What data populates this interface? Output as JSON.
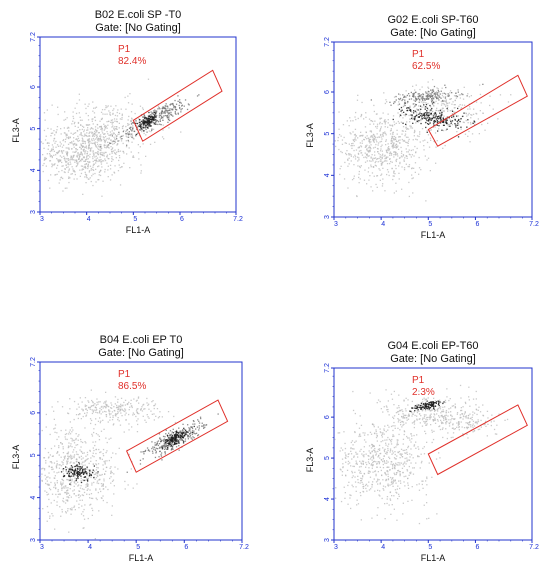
{
  "chart_data": [
    {
      "type": "scatter",
      "title": "B02 E.coli SP -T0",
      "subtitle": "Gate: [No Gating]",
      "xlabel": "FL1-A",
      "ylabel": "FL3-A",
      "xlim": [
        3,
        7.2
      ],
      "ylim": [
        3,
        7.2
      ],
      "xticks": [
        "3",
        "4",
        "5",
        "6",
        "7.2"
      ],
      "yticks": [
        "3",
        "4",
        "5",
        "6",
        "7.2"
      ],
      "gate": {
        "name": "P1",
        "percent": "82.4%"
      },
      "gate_polygon": [
        [
          5.0,
          5.2
        ],
        [
          6.7,
          6.4
        ],
        [
          6.9,
          5.9
        ],
        [
          5.2,
          4.7
        ]
      ],
      "populations": [
        {
          "cx": 3.9,
          "cy": 4.4,
          "sx": 0.45,
          "sy": 0.35,
          "n": 600,
          "tone": "light"
        },
        {
          "cx": 4.4,
          "cy": 5.0,
          "sx": 0.55,
          "sy": 0.35,
          "n": 350,
          "tone": "light"
        },
        {
          "cx": 5.5,
          "cy": 5.3,
          "sx": 0.45,
          "sy": 0.1,
          "n": 260,
          "tone": "mid",
          "tilt": 0.55
        },
        {
          "cx": 5.3,
          "cy": 5.2,
          "sx": 0.12,
          "sy": 0.06,
          "n": 120,
          "tone": "dark",
          "tilt": 0.6
        }
      ]
    },
    {
      "type": "scatter",
      "title": "G02 E.coli SP-T60",
      "subtitle": "Gate: [No Gating]",
      "xlabel": "FL1-A",
      "ylabel": "FL3-A",
      "xlim": [
        3,
        7.2
      ],
      "ylim": [
        3,
        7.2
      ],
      "xticks": [
        "3",
        "4",
        "5",
        "6",
        "7.2"
      ],
      "yticks": [
        "3",
        "4",
        "5",
        "6",
        "7.2"
      ],
      "gate": {
        "name": "P1",
        "percent": "62.5%"
      },
      "gate_polygon": [
        [
          5.0,
          5.1
        ],
        [
          6.9,
          6.4
        ],
        [
          7.1,
          5.9
        ],
        [
          5.2,
          4.7
        ]
      ],
      "populations": [
        {
          "cx": 4.0,
          "cy": 4.7,
          "sx": 0.45,
          "sy": 0.45,
          "n": 600,
          "tone": "light"
        },
        {
          "cx": 5.3,
          "cy": 5.6,
          "sx": 0.5,
          "sy": 0.3,
          "n": 300,
          "tone": "light"
        },
        {
          "cx": 4.9,
          "cy": 5.9,
          "sx": 0.35,
          "sy": 0.08,
          "n": 160,
          "tone": "mid",
          "tilt": 0.1
        },
        {
          "cx": 5.1,
          "cy": 5.4,
          "sx": 0.12,
          "sy": 0.35,
          "n": 200,
          "tone": "dark",
          "tilt": 1.4
        }
      ]
    },
    {
      "type": "scatter",
      "title": "B04 E.coli EP T0",
      "subtitle": "Gate: [No Gating]",
      "xlabel": "FL1-A",
      "ylabel": "FL3-A",
      "xlim": [
        3,
        7.2
      ],
      "ylim": [
        3,
        7.2
      ],
      "xticks": [
        "3",
        "4",
        "5",
        "6",
        "7.2"
      ],
      "yticks": [
        "3",
        "4",
        "5",
        "6",
        "7.2"
      ],
      "gate": {
        "name": "P1",
        "percent": "86.5%"
      },
      "gate_polygon": [
        [
          4.8,
          5.1
        ],
        [
          6.7,
          6.3
        ],
        [
          6.9,
          5.8
        ],
        [
          5.0,
          4.6
        ]
      ],
      "populations": [
        {
          "cx": 3.7,
          "cy": 4.6,
          "sx": 0.5,
          "sy": 0.5,
          "n": 650,
          "tone": "light"
        },
        {
          "cx": 4.5,
          "cy": 6.1,
          "sx": 0.5,
          "sy": 0.15,
          "n": 250,
          "tone": "light"
        },
        {
          "cx": 3.8,
          "cy": 4.6,
          "sx": 0.15,
          "sy": 0.1,
          "n": 120,
          "tone": "dark"
        },
        {
          "cx": 5.8,
          "cy": 5.4,
          "sx": 0.35,
          "sy": 0.1,
          "n": 260,
          "tone": "mid",
          "tilt": 0.55
        },
        {
          "cx": 5.8,
          "cy": 5.4,
          "sx": 0.15,
          "sy": 0.06,
          "n": 140,
          "tone": "dark",
          "tilt": 0.6
        }
      ]
    },
    {
      "type": "scatter",
      "title": "G04 E.coli EP-T60",
      "subtitle": "Gate: [No Gating]",
      "xlabel": "FL1-A",
      "ylabel": "FL3-A",
      "xlim": [
        3,
        7.2
      ],
      "ylim": [
        3,
        7.2
      ],
      "xticks": [
        "3",
        "4",
        "5",
        "6",
        "7.2"
      ],
      "yticks": [
        "3",
        "4",
        "5",
        "6",
        "7.2"
      ],
      "gate": {
        "name": "P1",
        "percent": "2.3%"
      },
      "gate_polygon": [
        [
          5.0,
          5.1
        ],
        [
          6.9,
          6.3
        ],
        [
          7.1,
          5.8
        ],
        [
          5.2,
          4.6
        ]
      ],
      "populations": [
        {
          "cx": 4.0,
          "cy": 4.9,
          "sx": 0.5,
          "sy": 0.5,
          "n": 600,
          "tone": "light"
        },
        {
          "cx": 5.0,
          "cy": 6.1,
          "sx": 0.5,
          "sy": 0.25,
          "n": 300,
          "tone": "light"
        },
        {
          "cx": 5.0,
          "cy": 6.3,
          "sx": 0.15,
          "sy": 0.05,
          "n": 110,
          "tone": "dark",
          "tilt": 0.3
        },
        {
          "cx": 5.8,
          "cy": 5.9,
          "sx": 0.35,
          "sy": 0.2,
          "n": 120,
          "tone": "light"
        }
      ]
    }
  ],
  "colors": {
    "axis": "#2233cc",
    "tick_text": "#1a2fd6",
    "gate": "#e0302a",
    "text": "#111111",
    "dot_light": "#b9b9b9",
    "dot_mid": "#7a7a7a",
    "dot_dark": "#1c1c1c"
  }
}
